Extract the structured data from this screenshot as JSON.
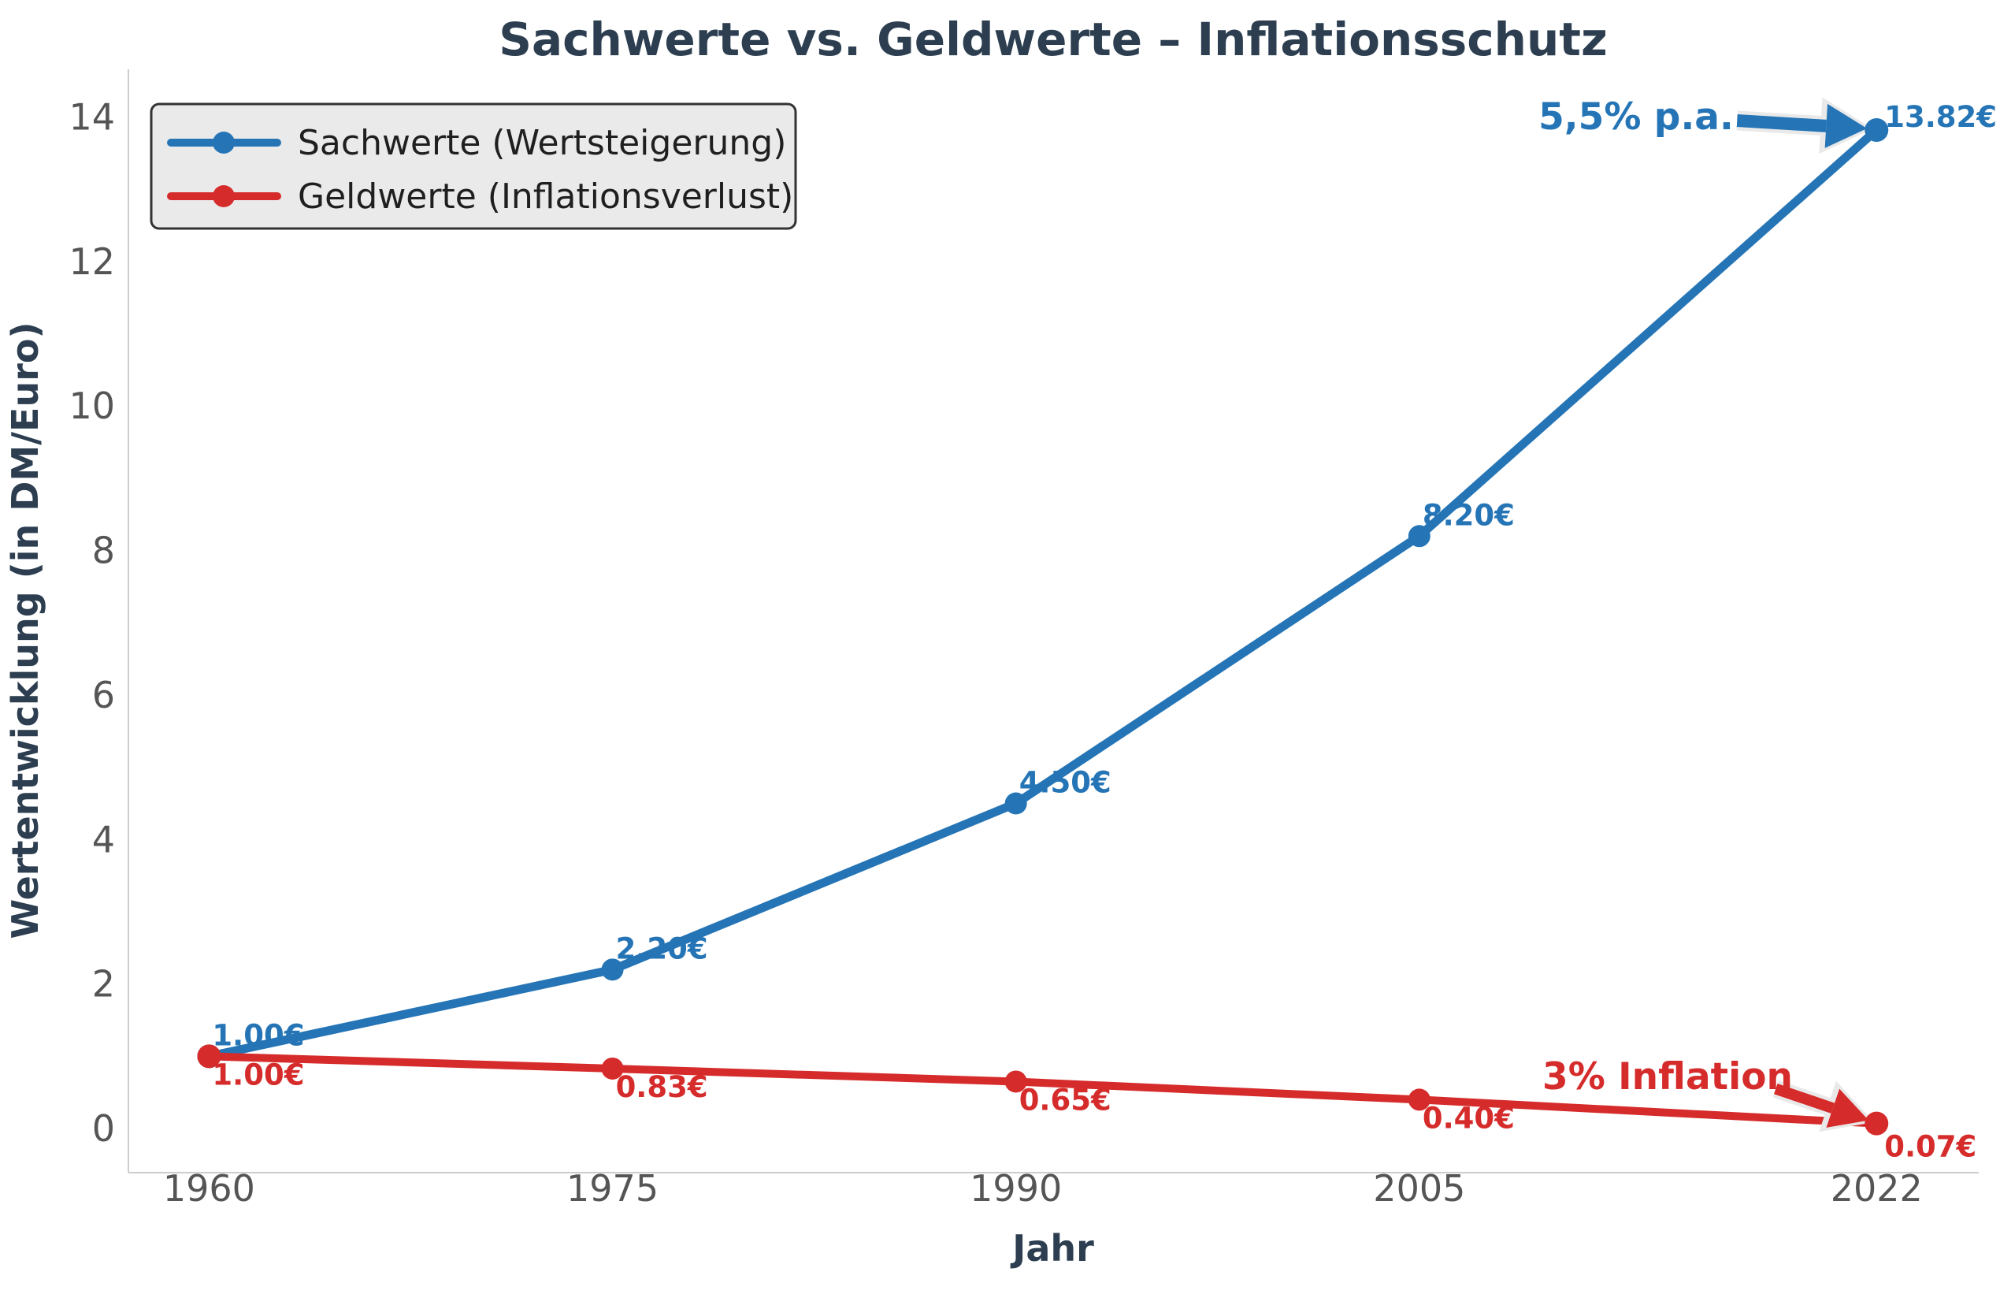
{
  "page": {
    "background": "#ffffff"
  },
  "chart_data": {
    "type": "line",
    "title": "Sachwerte vs. Geldwerte – Inflationsschutz",
    "xlabel": "Jahr",
    "ylabel": "Wertentwicklung (in DM/Euro)",
    "x": [
      1960,
      1975,
      1990,
      2005,
      2022
    ],
    "xtick_labels": [
      "1960",
      "1975",
      "1990",
      "2005",
      "2022"
    ],
    "yticks": [
      0,
      2,
      4,
      6,
      8,
      10,
      12,
      14
    ],
    "xlim": [
      1957.0,
      2025.8
    ],
    "ylim": [
      -0.61,
      14.66
    ],
    "grid": false,
    "legend_position": "upper-left",
    "series": [
      {
        "name": "Sachwerte (Wertsteigerung)",
        "color": "#2575b6",
        "values": [
          1.0,
          2.2,
          4.5,
          8.2,
          13.82
        ],
        "point_labels": [
          "1.00€",
          "2.20€",
          "4.50€",
          "8.20€",
          "13.82€"
        ]
      },
      {
        "name": "Geldwerte (Inflationsverlust)",
        "color": "#d62b2b",
        "values": [
          1.0,
          0.83,
          0.65,
          0.4,
          0.07
        ],
        "point_labels": [
          "1.00€",
          "0.83€",
          "0.65€",
          "0.40€",
          "0.07€"
        ]
      }
    ],
    "annotations": [
      {
        "text": "5,5% p.a.",
        "color": "#2575b6"
      },
      {
        "text": "3% Inflation",
        "color": "#d62b2b"
      }
    ],
    "colors": {
      "title": "#2c3e50",
      "axis_label": "#2c3e50",
      "tick": "#555555",
      "legend_text": "#1f1f1f",
      "legend_bg": "#eaeaea",
      "legend_border": "#333333",
      "spine": "#cccccc",
      "arrow_halo": "#e9e9e9"
    }
  }
}
